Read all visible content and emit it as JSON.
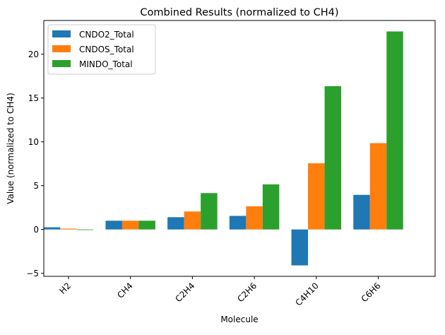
{
  "chart_data": {
    "type": "bar",
    "title": "Combined Results (normalized to CH4)",
    "xlabel": "Molecule",
    "ylabel": "Value (normalized to CH4)",
    "categories": [
      "H2",
      "CH4",
      "C2H4",
      "C2H6",
      "C4H10",
      "C6H6"
    ],
    "series": [
      {
        "name": "CNDO2_Total",
        "color": "#1f77b4",
        "values": [
          0.25,
          1.0,
          1.4,
          1.55,
          -4.1,
          3.95
        ]
      },
      {
        "name": "CNDOS_Total",
        "color": "#ff7f0e",
        "values": [
          0.1,
          1.0,
          2.05,
          2.65,
          7.55,
          9.85
        ]
      },
      {
        "name": "MINDO_Total",
        "color": "#2ca02c",
        "values": [
          -0.05,
          1.0,
          4.15,
          5.15,
          16.35,
          22.6
        ]
      }
    ],
    "ylim": [
      -5.35,
      23.85
    ],
    "yticks": [
      -5,
      0,
      5,
      10,
      15,
      20
    ],
    "ytick_labels": [
      "−5",
      "0",
      "5",
      "10",
      "15",
      "20"
    ],
    "grid": false,
    "legend": "top-left",
    "x_tick_rotation": 45
  }
}
